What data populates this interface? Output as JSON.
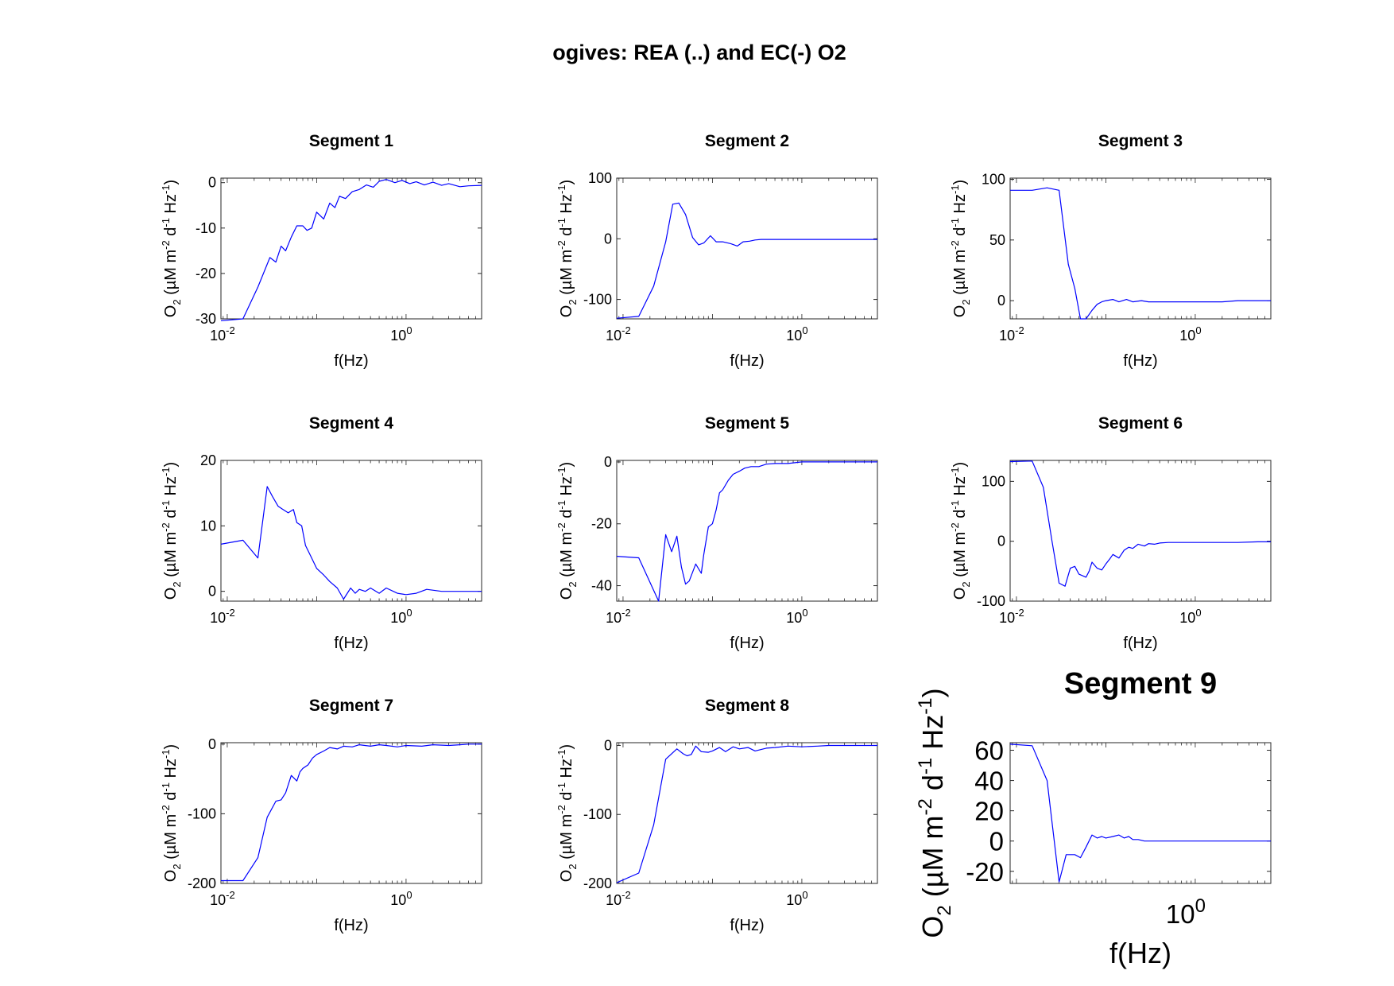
{
  "figure": {
    "title": "ogives: REA (..) and EC(-) O2",
    "line_color": "#0000ff"
  },
  "chart_data": [
    {
      "type": "line",
      "title": "Segment 1",
      "xlabel": "f(Hz)",
      "ylabel": "O2 (µM m-2 d-1 Hz-1)",
      "xscale": "log",
      "xlim": [
        0.0085,
        7
      ],
      "ylim": [
        -30,
        1
      ],
      "yticks": [
        0,
        -10,
        -20,
        -30
      ],
      "xticks": [
        0.01,
        1
      ],
      "xtick_labels": [
        [
          "10",
          "-2"
        ],
        [
          "10",
          "0"
        ]
      ],
      "series": [
        {
          "x": [
            0.0085,
            0.015,
            0.022,
            0.03,
            0.035,
            0.04,
            0.045,
            0.052,
            0.06,
            0.07,
            0.078,
            0.088,
            0.1,
            0.12,
            0.14,
            0.16,
            0.18,
            0.21,
            0.25,
            0.3,
            0.36,
            0.43,
            0.5,
            0.6,
            0.75,
            0.9,
            1.1,
            1.3,
            1.6,
            2,
            2.5,
            3,
            4,
            5,
            7
          ],
          "y": [
            -30.4,
            -30.0,
            -23,
            -16.5,
            -17.5,
            -14,
            -15,
            -12,
            -9.5,
            -9.5,
            -10.5,
            -10,
            -6.5,
            -8,
            -4.5,
            -5.5,
            -3,
            -3.5,
            -2,
            -1.5,
            -0.5,
            -1,
            0.3,
            0.7,
            0,
            0.5,
            -0.2,
            0.2,
            -0.5,
            0.1,
            -0.6,
            -0.2,
            -0.9,
            -0.7,
            -0.6
          ]
        }
      ]
    },
    {
      "type": "line",
      "title": "Segment 2",
      "xlabel": "f(Hz)",
      "ylabel": "O2 (µM m-2 d-1 Hz-1)",
      "xscale": "log",
      "xlim": [
        0.0085,
        7
      ],
      "ylim": [
        -132,
        100
      ],
      "yticks": [
        100,
        0,
        -100
      ],
      "xticks": [
        0.01,
        1
      ],
      "xtick_labels": [
        [
          "10",
          "-2"
        ],
        [
          "10",
          "0"
        ]
      ],
      "series": [
        {
          "x": [
            0.0085,
            0.015,
            0.022,
            0.03,
            0.036,
            0.042,
            0.05,
            0.06,
            0.07,
            0.08,
            0.095,
            0.11,
            0.13,
            0.16,
            0.19,
            0.22,
            0.26,
            0.3,
            0.35,
            0.45,
            0.6,
            0.8,
            1,
            1.5,
            2,
            3,
            5,
            7
          ],
          "y": [
            -131,
            -128,
            -78,
            -5,
            57,
            59,
            40,
            2,
            -10,
            -7,
            5,
            -5,
            -5,
            -8,
            -12,
            -5,
            -4,
            -2,
            -1,
            -1,
            -1,
            -1,
            -1,
            -1,
            -1,
            -1,
            -1,
            -1
          ]
        }
      ]
    },
    {
      "type": "line",
      "title": "Segment 3",
      "xlabel": "f(Hz)",
      "ylabel": "O2 (µM m-2 d-1 Hz-1)",
      "xscale": "log",
      "xlim": [
        0.0085,
        7
      ],
      "ylim": [
        -15,
        101
      ],
      "yticks": [
        100,
        50,
        0
      ],
      "xticks": [
        0.01,
        1
      ],
      "xtick_labels": [
        [
          "10",
          "-2"
        ],
        [
          "10",
          "0"
        ]
      ],
      "series": [
        {
          "x": [
            0.0085,
            0.015,
            0.022,
            0.03,
            0.038,
            0.045,
            0.052,
            0.06,
            0.07,
            0.08,
            0.09,
            0.1,
            0.12,
            0.14,
            0.17,
            0.2,
            0.25,
            0.3,
            0.4,
            0.5,
            0.7,
            1,
            1.5,
            2,
            3,
            5,
            7
          ],
          "y": [
            91,
            91,
            93,
            91,
            30,
            10,
            -15,
            -15,
            -8,
            -3,
            -1,
            0,
            1,
            -1,
            1,
            -1,
            0,
            -1,
            -1,
            -1,
            -1,
            -1,
            -1,
            -1,
            0,
            0,
            0
          ]
        }
      ]
    },
    {
      "type": "line",
      "title": "Segment 4",
      "xlabel": "f(Hz)",
      "ylabel": "O2 (µM m-2 d-1 Hz-1)",
      "xscale": "log",
      "xlim": [
        0.0085,
        7
      ],
      "ylim": [
        -1.5,
        20
      ],
      "yticks": [
        20,
        10,
        0
      ],
      "xticks": [
        0.01,
        1
      ],
      "xtick_labels": [
        [
          "10",
          "-2"
        ],
        [
          "10",
          "0"
        ]
      ],
      "series": [
        {
          "x": [
            0.0085,
            0.015,
            0.022,
            0.028,
            0.032,
            0.037,
            0.042,
            0.048,
            0.055,
            0.06,
            0.068,
            0.075,
            0.085,
            0.1,
            0.12,
            0.14,
            0.17,
            0.2,
            0.24,
            0.27,
            0.3,
            0.35,
            0.4,
            0.5,
            0.6,
            0.8,
            1,
            1.3,
            1.7,
            2.5,
            3.5,
            5,
            7
          ],
          "y": [
            7.2,
            7.8,
            5.1,
            16,
            14.5,
            13,
            12.5,
            12,
            12.5,
            10.5,
            10,
            7,
            5.5,
            3.5,
            2.5,
            1.5,
            0.5,
            -1.2,
            0.5,
            -0.3,
            0.3,
            0,
            0.5,
            -0.3,
            0.5,
            -0.3,
            -0.5,
            -0.3,
            0.3,
            0,
            0,
            0,
            0
          ]
        }
      ]
    },
    {
      "type": "line",
      "title": "Segment 5",
      "xlabel": "f(Hz)",
      "ylabel": "O2 (µM m-2 d-1 Hz-1)",
      "xscale": "log",
      "xlim": [
        0.0085,
        7
      ],
      "ylim": [
        -45,
        0.5
      ],
      "yticks": [
        0,
        -20,
        -40
      ],
      "xticks": [
        0.01,
        1
      ],
      "xtick_labels": [
        [
          "10",
          "-2"
        ],
        [
          "10",
          "0"
        ]
      ],
      "series": [
        {
          "x": [
            0.0085,
            0.015,
            0.025,
            0.03,
            0.035,
            0.04,
            0.045,
            0.05,
            0.055,
            0.065,
            0.075,
            0.08,
            0.09,
            0.1,
            0.11,
            0.12,
            0.13,
            0.15,
            0.17,
            0.2,
            0.23,
            0.27,
            0.33,
            0.4,
            0.5,
            0.7,
            1,
            1.5,
            2,
            3,
            4,
            5,
            7
          ],
          "y": [
            -30.5,
            -31,
            -45,
            -23.5,
            -29,
            -24,
            -34,
            -39.5,
            -38.5,
            -33,
            -36,
            -30,
            -21,
            -20,
            -15.5,
            -10,
            -9,
            -6,
            -4,
            -3,
            -2,
            -1.5,
            -1.5,
            -0.7,
            -0.5,
            -0.5,
            0,
            0,
            0,
            0,
            0,
            0,
            0
          ]
        }
      ]
    },
    {
      "type": "line",
      "title": "Segment 6",
      "xlabel": "f(Hz)",
      "ylabel": "O2 (µM m-2 d-1 Hz-1)",
      "xscale": "log",
      "xlim": [
        0.0085,
        7
      ],
      "ylim": [
        -100,
        135
      ],
      "yticks": [
        100,
        0,
        -100
      ],
      "xticks": [
        0.01,
        1
      ],
      "xtick_labels": [
        [
          "10",
          "-2"
        ],
        [
          "10",
          "0"
        ]
      ],
      "series": [
        {
          "x": [
            0.0085,
            0.015,
            0.02,
            0.025,
            0.03,
            0.035,
            0.04,
            0.045,
            0.05,
            0.06,
            0.065,
            0.07,
            0.08,
            0.09,
            0.1,
            0.11,
            0.12,
            0.14,
            0.16,
            0.18,
            0.2,
            0.23,
            0.27,
            0.3,
            0.35,
            0.4,
            0.5,
            0.7,
            1,
            1.5,
            2,
            3,
            5,
            7
          ],
          "y": [
            133,
            134,
            90,
            0,
            -70,
            -75,
            -45,
            -42,
            -55,
            -60,
            -50,
            -35,
            -45,
            -48,
            -38,
            -30,
            -22,
            -28,
            -15,
            -10,
            -12,
            -5,
            -8,
            -4,
            -5,
            -3,
            -2,
            -2,
            -2,
            -2,
            -2,
            -2,
            -1,
            -1
          ]
        }
      ]
    },
    {
      "type": "line",
      "title": "Segment 7",
      "xlabel": "f(Hz)",
      "ylabel": "O2 (µM m-2 d-1 Hz-1)",
      "xscale": "log",
      "xlim": [
        0.0085,
        7
      ],
      "ylim": [
        -200,
        2
      ],
      "yticks": [
        0,
        -100,
        -200
      ],
      "xticks": [
        0.01,
        1
      ],
      "xtick_labels": [
        [
          "10",
          "-2"
        ],
        [
          "10",
          "0"
        ]
      ],
      "series": [
        {
          "x": [
            0.0085,
            0.015,
            0.022,
            0.028,
            0.035,
            0.04,
            0.045,
            0.052,
            0.06,
            0.065,
            0.07,
            0.08,
            0.09,
            0.1,
            0.12,
            0.14,
            0.17,
            0.2,
            0.25,
            0.3,
            0.4,
            0.5,
            0.6,
            0.8,
            1,
            1.5,
            2,
            3,
            4,
            5,
            7
          ],
          "y": [
            -196,
            -196,
            -163,
            -105,
            -82,
            -80,
            -70,
            -45,
            -53,
            -40,
            -35,
            -30,
            -20,
            -15,
            -10,
            -5,
            -7,
            -3,
            -4,
            -1,
            -3,
            -1,
            -2,
            -4,
            -2,
            -3,
            -1,
            -2,
            -1,
            0,
            0
          ]
        }
      ]
    },
    {
      "type": "line",
      "title": "Segment 8",
      "xlabel": "f(Hz)",
      "ylabel": "O2 (µM m-2 d-1 Hz-1)",
      "xscale": "log",
      "xlim": [
        0.0085,
        7
      ],
      "ylim": [
        -200,
        4
      ],
      "yticks": [
        0,
        -100,
        -200
      ],
      "xticks": [
        0.01,
        1
      ],
      "xtick_labels": [
        [
          "10",
          "-2"
        ],
        [
          "10",
          "0"
        ]
      ],
      "series": [
        {
          "x": [
            0.0085,
            0.015,
            0.022,
            0.03,
            0.04,
            0.047,
            0.052,
            0.058,
            0.065,
            0.075,
            0.09,
            0.1,
            0.12,
            0.14,
            0.17,
            0.2,
            0.25,
            0.3,
            0.4,
            0.5,
            0.7,
            1,
            1.5,
            2,
            3,
            5,
            7
          ],
          "y": [
            -199,
            -185,
            -115,
            -20,
            -5,
            -12,
            -15,
            -13,
            -1,
            -9,
            -10,
            -8,
            -3,
            -9,
            -2,
            -5,
            -3,
            -8,
            -4,
            -3,
            -1,
            -2,
            -1,
            0,
            0,
            0,
            0
          ]
        }
      ]
    },
    {
      "type": "line",
      "title": "Segment 9",
      "xlabel": "f(Hz)",
      "ylabel": "O2 (µM m-2 d-1 Hz-1)",
      "xscale": "log",
      "xlim": [
        0.0085,
        7
      ],
      "ylim": [
        -28,
        65
      ],
      "yticks": [
        60,
        40,
        20,
        0,
        -20
      ],
      "xticks": [
        1
      ],
      "xtick_labels": [
        [
          "10",
          "0"
        ]
      ],
      "series": [
        {
          "x": [
            0.0085,
            0.015,
            0.022,
            0.03,
            0.036,
            0.045,
            0.052,
            0.06,
            0.07,
            0.08,
            0.09,
            0.1,
            0.12,
            0.14,
            0.16,
            0.18,
            0.2,
            0.23,
            0.27,
            0.3,
            0.4,
            0.6,
            1,
            1.5,
            2,
            3,
            5,
            7
          ],
          "y": [
            64,
            63,
            40,
            -27,
            -9,
            -9,
            -11,
            -4,
            4,
            2,
            3,
            2,
            3,
            4,
            2,
            3,
            1,
            1,
            0,
            0,
            0,
            0,
            0,
            0,
            0,
            0,
            0,
            0
          ]
        }
      ]
    }
  ]
}
